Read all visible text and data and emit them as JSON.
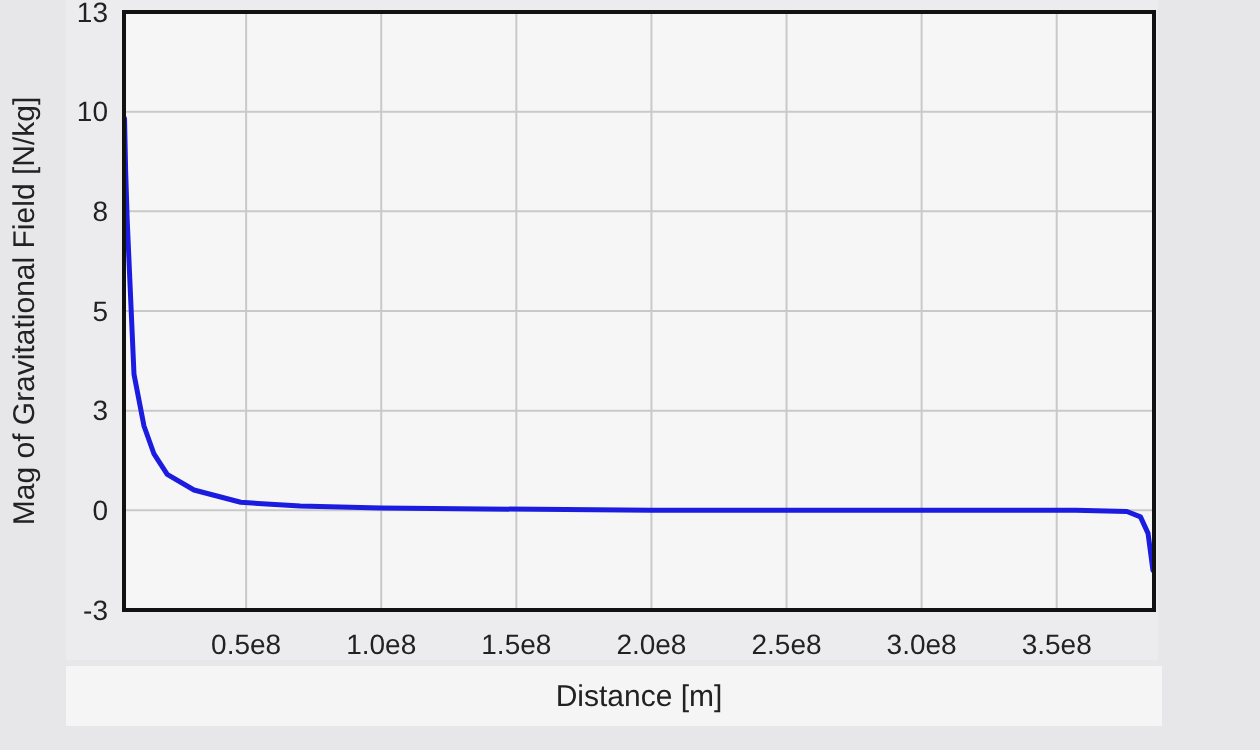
{
  "chart_data": {
    "type": "line",
    "xlabel": "Distance [m]",
    "ylabel": "Mag of Gravitational Field [N/kg]",
    "xlim": [
      4800000,
      386000000
    ],
    "xticks": [
      {
        "value": 50000000,
        "label": "0.5e8"
      },
      {
        "value": 100000000,
        "label": "1.0e8"
      },
      {
        "value": 150000000,
        "label": "1.5e8"
      },
      {
        "value": 200000000,
        "label": "2.0e8"
      },
      {
        "value": 250000000,
        "label": "2.5e8"
      },
      {
        "value": 300000000,
        "label": "3.0e8"
      },
      {
        "value": 350000000,
        "label": "3.5e8"
      }
    ],
    "ylim": [
      -2.6,
      13
    ],
    "yticks": [
      {
        "value": -2.6,
        "label": "-3"
      },
      0,
      {
        "value": 2.6,
        "label": "3"
      },
      {
        "value": 5.2,
        "label": "5"
      },
      {
        "value": 7.8,
        "label": "8"
      },
      {
        "value": 10.4,
        "label": "10"
      },
      13
    ],
    "grid": true,
    "marker": "none",
    "line_style": "solid",
    "series": [
      {
        "color": "#1c1ce0",
        "x": [
          5000000,
          5400000,
          5990000,
          8500000,
          12200000,
          15900000,
          20800000,
          30700000,
          48000000,
          70000000,
          99800000,
          200000000,
          300000000,
          357000000,
          376000000,
          381000000,
          383800000,
          385600000
        ],
        "values": [
          10.22,
          8.87,
          7.56,
          3.55,
          2.2,
          1.47,
          0.94,
          0.53,
          0.21,
          0.11,
          0.06,
          0,
          0,
          0,
          -0.03,
          -0.17,
          -0.6,
          -1.56
        ]
      }
    ]
  }
}
